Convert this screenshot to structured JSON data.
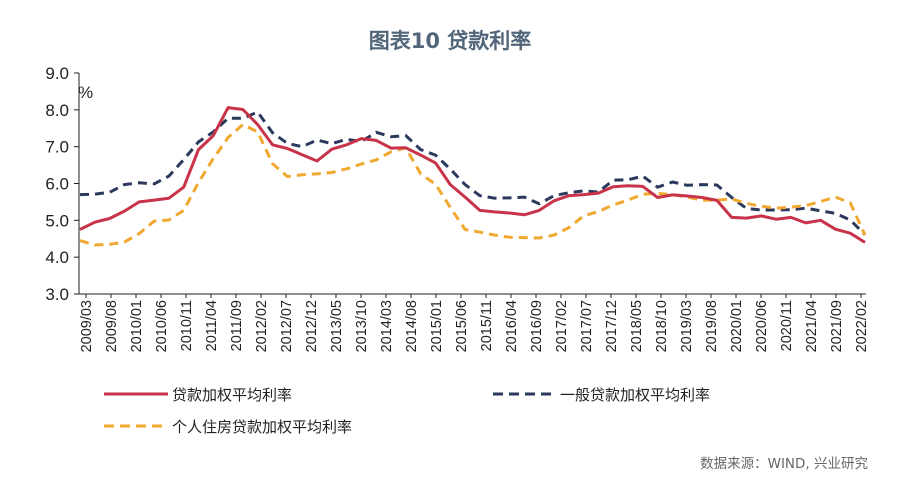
{
  "chart_data": {
    "type": "line",
    "title": "图表10  贷款利率",
    "unit": "%",
    "ylim": [
      3.0,
      9.0
    ],
    "yticks": [
      "9.0",
      "8.0",
      "7.0",
      "6.0",
      "5.0",
      "4.0",
      "3.0"
    ],
    "ytick_values": [
      9,
      8,
      7,
      6,
      5,
      4,
      3
    ],
    "xtick_labels": [
      "2009/03",
      "2009/08",
      "2010/01",
      "2010/06",
      "2010/11",
      "2011/04",
      "2011/09",
      "2012/02",
      "2012/07",
      "2012/12",
      "2013/05",
      "2013/10",
      "2014/03",
      "2014/08",
      "2015/01",
      "2015/06",
      "2015/11",
      "2016/04",
      "2016/09",
      "2017/02",
      "2017/07",
      "2017/12",
      "2018/05",
      "2018/10",
      "2019/03",
      "2019/08",
      "2020/01",
      "2020/06",
      "2020/11",
      "2021/04",
      "2021/09",
      "2022/02"
    ],
    "x_quarters": [
      "2009Q1",
      "2009Q2",
      "2009Q3",
      "2009Q4",
      "2010Q1",
      "2010Q2",
      "2010Q3",
      "2010Q4",
      "2011Q1",
      "2011Q2",
      "2011Q3",
      "2011Q4",
      "2012Q1",
      "2012Q2",
      "2012Q3",
      "2012Q4",
      "2013Q1",
      "2013Q2",
      "2013Q3",
      "2013Q4",
      "2014Q1",
      "2014Q2",
      "2014Q3",
      "2014Q4",
      "2015Q1",
      "2015Q2",
      "2015Q3",
      "2015Q4",
      "2016Q1",
      "2016Q2",
      "2016Q3",
      "2016Q4",
      "2017Q1",
      "2017Q2",
      "2017Q3",
      "2017Q4",
      "2018Q1",
      "2018Q2",
      "2018Q3",
      "2018Q4",
      "2019Q1",
      "2019Q2",
      "2019Q3",
      "2019Q4",
      "2020Q1",
      "2020Q2",
      "2020Q3",
      "2020Q4",
      "2021Q1",
      "2021Q2",
      "2021Q3",
      "2021Q4",
      "2022Q1",
      "2022Q2"
    ],
    "series": [
      {
        "name": "贷款加权平均利率",
        "color": "#c8334a",
        "dash": "solid",
        "values": [
          4.75,
          4.95,
          5.05,
          5.25,
          5.5,
          5.55,
          5.6,
          5.9,
          6.92,
          7.3,
          8.06,
          8.01,
          7.6,
          7.05,
          6.95,
          6.78,
          6.61,
          6.93,
          7.05,
          7.22,
          7.17,
          6.96,
          6.97,
          6.77,
          6.56,
          5.97,
          5.63,
          5.27,
          5.23,
          5.2,
          5.15,
          5.27,
          5.53,
          5.67,
          5.7,
          5.74,
          5.91,
          5.94,
          5.92,
          5.62,
          5.69,
          5.66,
          5.62,
          5.54,
          5.08,
          5.06,
          5.12,
          5.03,
          5.08,
          4.93,
          5.0,
          4.76,
          4.65,
          4.4
        ]
      },
      {
        "name": "一般贷款加权平均利率",
        "color": "#2b3a5c",
        "dash": "dashed",
        "values": [
          5.7,
          5.71,
          5.76,
          5.97,
          6.02,
          5.99,
          6.2,
          6.65,
          7.13,
          7.4,
          7.77,
          7.77,
          7.94,
          7.38,
          7.09,
          7.0,
          7.18,
          7.08,
          7.2,
          7.14,
          7.39,
          7.27,
          7.3,
          6.92,
          6.77,
          6.39,
          5.97,
          5.67,
          5.6,
          5.61,
          5.63,
          5.45,
          5.67,
          5.75,
          5.8,
          5.77,
          6.09,
          6.1,
          6.2,
          5.9,
          6.04,
          5.95,
          5.97,
          5.96,
          5.62,
          5.32,
          5.28,
          5.28,
          5.29,
          5.33,
          5.26,
          5.19,
          5.01,
          4.61
        ]
      },
      {
        "name": "个人住房贷款加权平均利率",
        "color": "#f0a830",
        "dash": "dashed",
        "values": [
          4.45,
          4.33,
          4.35,
          4.41,
          4.64,
          4.98,
          5.01,
          5.27,
          6.03,
          6.68,
          7.25,
          7.6,
          7.4,
          6.54,
          6.19,
          6.24,
          6.26,
          6.3,
          6.4,
          6.53,
          6.64,
          6.86,
          6.97,
          6.26,
          5.98,
          5.35,
          4.75,
          4.68,
          4.6,
          4.54,
          4.53,
          4.52,
          4.6,
          4.8,
          5.12,
          5.24,
          5.42,
          5.55,
          5.71,
          5.73,
          5.7,
          5.63,
          5.55,
          5.55,
          5.58,
          5.46,
          5.38,
          5.33,
          5.36,
          5.4,
          5.51,
          5.63,
          5.48,
          4.6
        ]
      }
    ],
    "legend": [
      "贷款加权平均利率",
      "一般贷款加权平均利率",
      "个人住房贷款加权平均利率"
    ],
    "source": "数据来源：WIND, 兴业研究"
  }
}
